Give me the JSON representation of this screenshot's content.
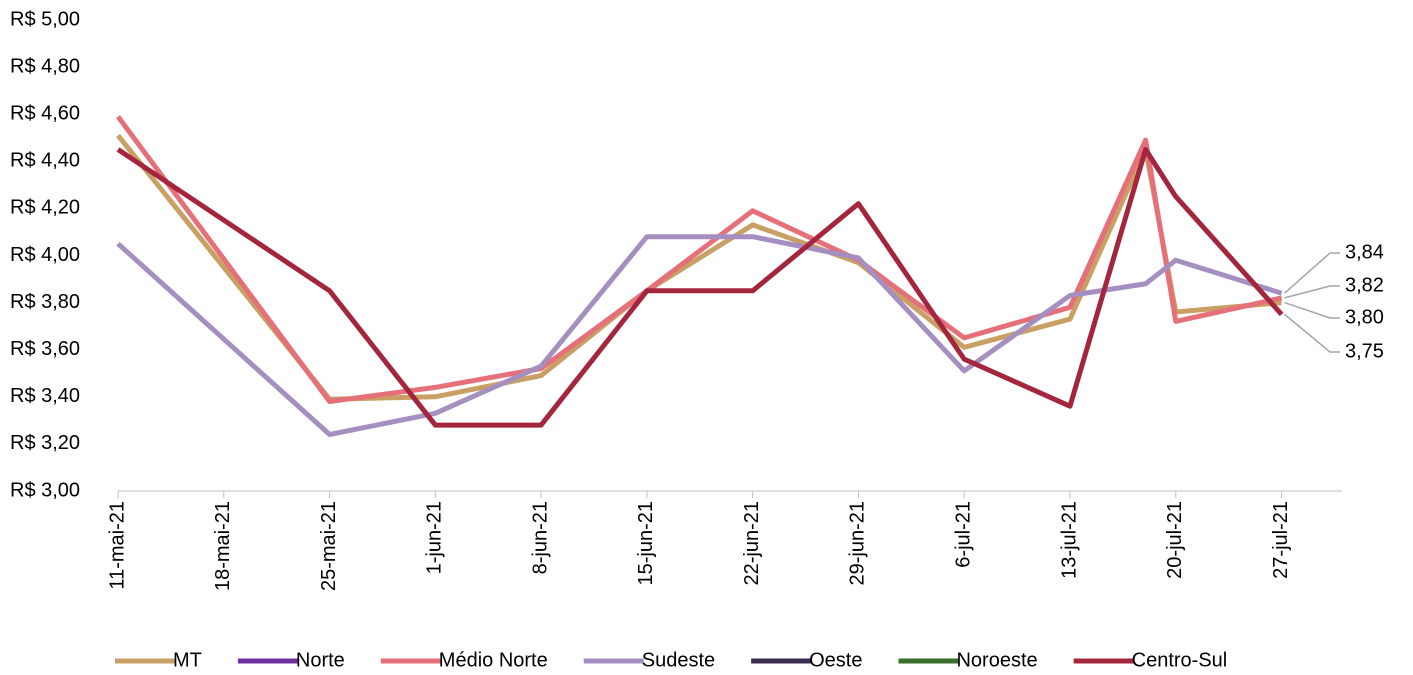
{
  "chart_data": {
    "type": "line",
    "x": [
      "2021-05-11",
      "2021-05-25",
      "2021-06-01",
      "2021-06-08",
      "2021-06-15",
      "2021-06-22",
      "2021-06-29",
      "2021-07-06",
      "2021-07-13",
      "2021-07-18",
      "2021-07-20",
      "2021-07-27"
    ],
    "xlim": [
      "2021-05-11",
      "2021-07-31"
    ],
    "xticks": [
      {
        "value": "2021-05-11",
        "label": "11-mai-21"
      },
      {
        "value": "2021-05-18",
        "label": "18-mai-21"
      },
      {
        "value": "2021-05-25",
        "label": "25-mai-21"
      },
      {
        "value": "2021-06-01",
        "label": "1-jun-21"
      },
      {
        "value": "2021-06-08",
        "label": "8-jun-21"
      },
      {
        "value": "2021-06-15",
        "label": "15-jun-21"
      },
      {
        "value": "2021-06-22",
        "label": "22-jun-21"
      },
      {
        "value": "2021-06-29",
        "label": "29-jun-21"
      },
      {
        "value": "2021-07-06",
        "label": "6-jul-21"
      },
      {
        "value": "2021-07-13",
        "label": "13-jul-21"
      },
      {
        "value": "2021-07-20",
        "label": "20-jul-21"
      },
      {
        "value": "2021-07-27",
        "label": "27-jul-21"
      }
    ],
    "ylim": [
      3,
      5
    ],
    "yticks": [
      {
        "value": 3,
        "label": "R$ 3,00"
      },
      {
        "value": 3.2,
        "label": "R$ 3,20"
      },
      {
        "value": 3.4,
        "label": "R$ 3,40"
      },
      {
        "value": 3.6,
        "label": "R$ 3,60"
      },
      {
        "value": 3.8,
        "label": "R$ 3,80"
      },
      {
        "value": 4,
        "label": "R$ 4,00"
      },
      {
        "value": 4.2,
        "label": "R$ 4,20"
      },
      {
        "value": 4.4,
        "label": "R$ 4,40"
      },
      {
        "value": 4.6,
        "label": "R$ 4,60"
      },
      {
        "value": 4.8,
        "label": "R$ 4,80"
      },
      {
        "value": 5,
        "label": "R$ 5,00"
      }
    ],
    "legend": "bottom",
    "series": [
      {
        "name": "MT",
        "color": "#c9a064",
        "values": [
          4.51,
          3.39,
          3.4,
          3.49,
          3.85,
          4.13,
          3.97,
          3.61,
          3.73,
          4.45,
          3.76,
          3.8
        ],
        "value_labels": [
          null,
          null,
          null,
          null,
          null,
          null,
          null,
          null,
          null,
          null,
          null,
          "3,80"
        ]
      },
      {
        "name": "Norte",
        "color": "#7030a0",
        "values": [
          null,
          null,
          null,
          null,
          null,
          null,
          null,
          null,
          null,
          null,
          null,
          null
        ]
      },
      {
        "name": "Médio Norte",
        "color": "#e5707a",
        "values": [
          4.59,
          3.38,
          3.44,
          3.52,
          3.85,
          4.19,
          3.98,
          3.65,
          3.78,
          4.49,
          3.72,
          3.82
        ],
        "value_labels": [
          null,
          null,
          null,
          null,
          null,
          null,
          null,
          null,
          null,
          null,
          null,
          "3,82"
        ]
      },
      {
        "name": "Sudeste",
        "color": "#a58fc0",
        "values": [
          4.05,
          3.24,
          3.33,
          3.53,
          4.08,
          4.08,
          3.99,
          3.51,
          3.83,
          3.88,
          3.98,
          3.84
        ],
        "value_labels": [
          null,
          null,
          null,
          null,
          null,
          null,
          null,
          null,
          null,
          null,
          null,
          "3,84"
        ]
      },
      {
        "name": "Oeste",
        "color": "#3b2a4f",
        "values": [
          null,
          null,
          null,
          null,
          null,
          null,
          null,
          null,
          null,
          null,
          null,
          null
        ]
      },
      {
        "name": "Noroeste",
        "color": "#38702c",
        "values": [
          null,
          null,
          null,
          null,
          null,
          null,
          null,
          null,
          null,
          null,
          null,
          null
        ]
      },
      {
        "name": "Centro-Sul",
        "color": "#a4263c",
        "values": [
          4.45,
          3.85,
          3.28,
          3.28,
          3.85,
          3.85,
          4.22,
          3.56,
          3.36,
          4.45,
          4.25,
          3.75
        ],
        "value_labels": [
          null,
          null,
          null,
          null,
          null,
          null,
          null,
          null,
          null,
          null,
          null,
          "3,75"
        ]
      }
    ]
  }
}
